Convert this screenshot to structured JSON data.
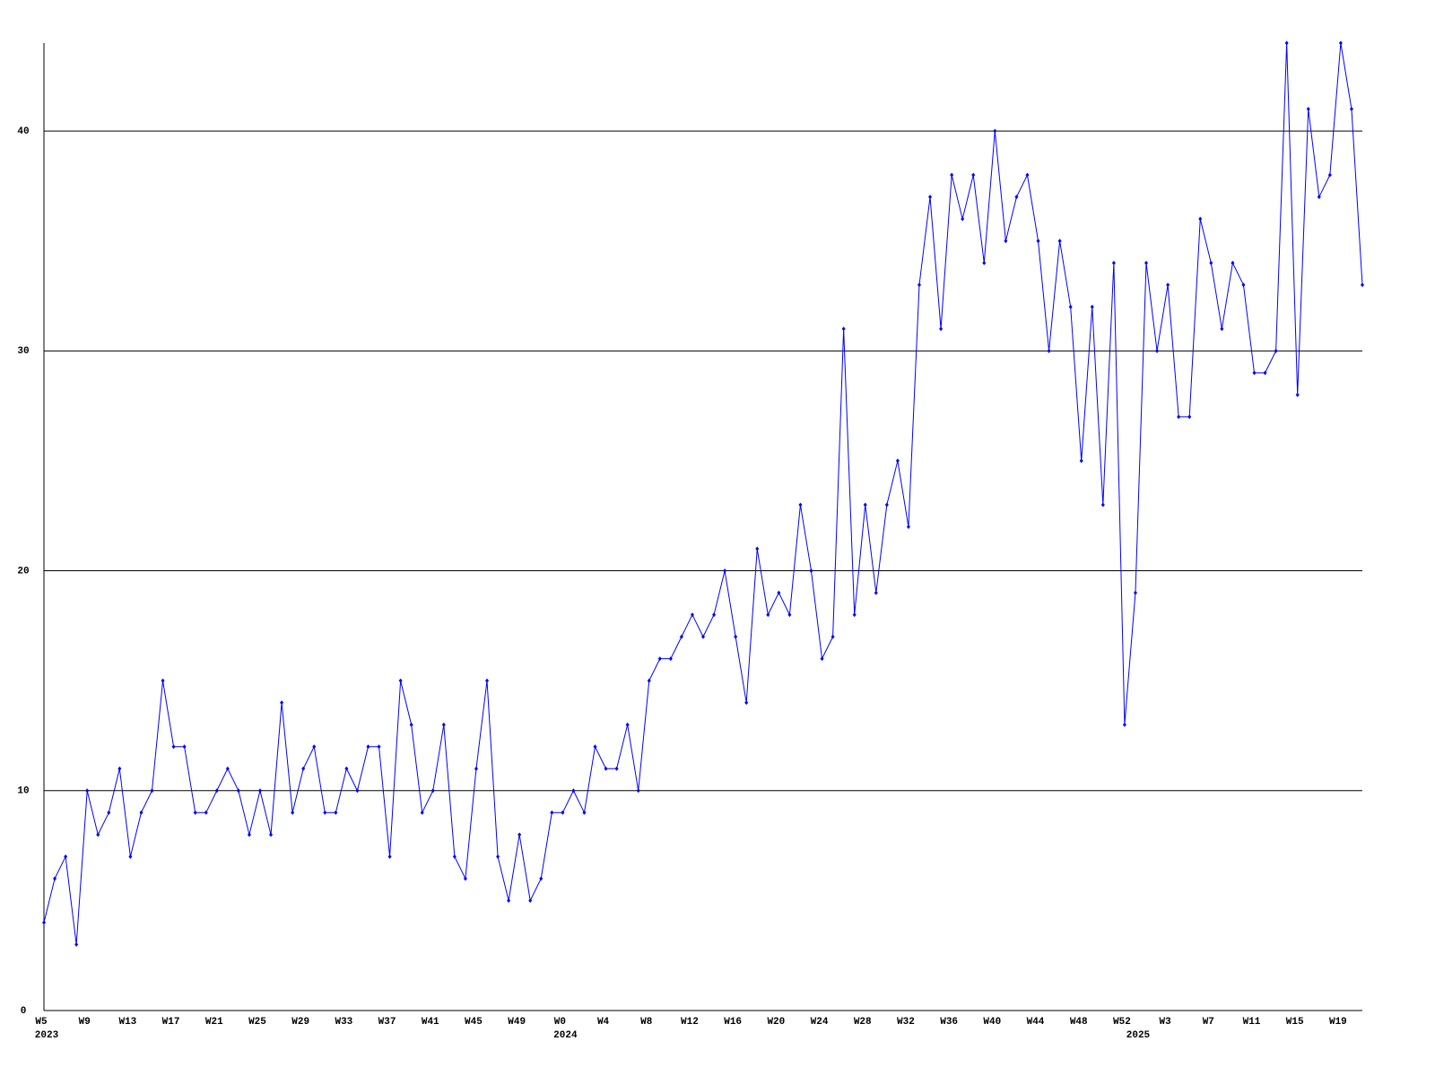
{
  "chart_data": {
    "type": "line",
    "categories": [
      "W5",
      null,
      null,
      null,
      "W9",
      null,
      null,
      null,
      "W13",
      null,
      null,
      null,
      "W17",
      null,
      null,
      null,
      "W21",
      null,
      null,
      null,
      "W25",
      null,
      null,
      null,
      "W29",
      null,
      null,
      null,
      "W33",
      null,
      null,
      null,
      "W37",
      null,
      null,
      null,
      "W41",
      null,
      null,
      null,
      "W45",
      null,
      null,
      null,
      "W49",
      null,
      null,
      null,
      "W0",
      null,
      null,
      null,
      "W4",
      null,
      null,
      null,
      "W8",
      null,
      null,
      null,
      "W12",
      null,
      null,
      null,
      "W16",
      null,
      null,
      null,
      "W20",
      null,
      null,
      null,
      "W24",
      null,
      null,
      null,
      "W28",
      null,
      null,
      null,
      "W32",
      null,
      null,
      null,
      "W36",
      null,
      null,
      null,
      "W40",
      null,
      null,
      null,
      "W44",
      null,
      null,
      null,
      "W48",
      null,
      null,
      null,
      "W52",
      null,
      null,
      null,
      "W3",
      null,
      null,
      null,
      "W7",
      null,
      null,
      null,
      "W11",
      null,
      null,
      null,
      "W15",
      null,
      null,
      null,
      "W19",
      null,
      null
    ],
    "x_groups": [
      {
        "label": "2023",
        "start": 0
      },
      {
        "label": "2024",
        "start": 48
      },
      {
        "label": "2025",
        "start": 101
      }
    ],
    "series": [
      {
        "color": "#0000ff",
        "values": [
          4,
          6,
          7,
          3,
          10,
          8,
          9,
          11,
          7,
          9,
          10,
          15,
          12,
          12,
          9,
          9,
          10,
          11,
          10,
          8,
          10,
          8,
          14,
          9,
          11,
          12,
          9,
          9,
          11,
          10,
          12,
          12,
          7,
          15,
          13,
          9,
          10,
          13,
          7,
          6,
          11,
          15,
          7,
          5,
          8,
          5,
          6,
          9,
          9,
          10,
          9,
          12,
          11,
          11,
          13,
          10,
          15,
          16,
          16,
          17,
          18,
          17,
          18,
          20,
          17,
          14,
          21,
          18,
          19,
          18,
          23,
          20,
          16,
          17,
          31,
          18,
          23,
          19,
          23,
          25,
          22,
          33,
          37,
          31,
          38,
          36,
          38,
          34,
          40,
          35,
          37,
          38,
          35,
          30,
          35,
          32,
          25,
          32,
          23,
          34,
          13,
          19,
          34,
          30,
          33,
          27,
          27,
          36,
          34,
          31,
          34,
          33,
          29,
          29,
          30,
          44,
          28,
          41,
          37,
          38,
          44,
          41,
          33
        ]
      }
    ],
    "ylim": [
      0,
      44
    ],
    "yticks": [
      0,
      10,
      20,
      30,
      40
    ],
    "grid": true
  }
}
